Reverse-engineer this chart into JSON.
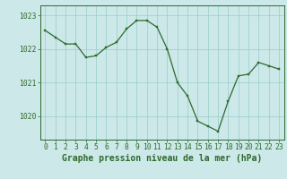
{
  "x": [
    0,
    1,
    2,
    3,
    4,
    5,
    6,
    7,
    8,
    9,
    10,
    11,
    12,
    13,
    14,
    15,
    16,
    17,
    18,
    19,
    20,
    21,
    22,
    23
  ],
  "y": [
    1022.55,
    1022.35,
    1022.15,
    1022.15,
    1021.75,
    1021.8,
    1022.05,
    1022.2,
    1022.6,
    1022.85,
    1022.85,
    1022.65,
    1022.0,
    1021.0,
    1020.6,
    1019.85,
    1019.7,
    1019.55,
    1020.45,
    1021.2,
    1021.25,
    1021.6,
    1021.5,
    1021.4
  ],
  "line_color": "#2d6a2d",
  "marker_color": "#2d6a2d",
  "bg_color": "#cce8e8",
  "grid_color": "#99cccc",
  "ylabel_ticks": [
    1020,
    1021,
    1022,
    1023
  ],
  "ylim": [
    1019.3,
    1023.3
  ],
  "xlim": [
    -0.5,
    23.5
  ],
  "xlabel": "Graphe pression niveau de la mer (hPa)",
  "axis_color": "#2d6a2d",
  "tick_color": "#2d6a2d",
  "font_size_label": 7.0,
  "font_size_tick": 5.8
}
